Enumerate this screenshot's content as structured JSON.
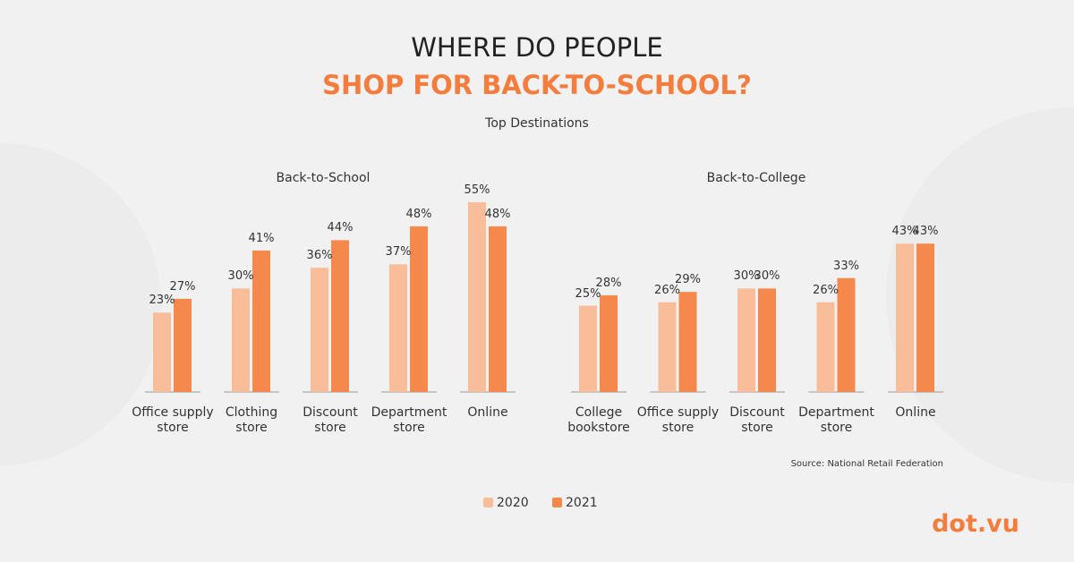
{
  "header": {
    "title_line1": "WHERE DO PEOPLE",
    "title_line2": "SHOP FOR BACK-TO-SCHOOL?",
    "subtitle": "Top Destinations"
  },
  "source": "Source: National Retail Federation",
  "logo": "dot.vu",
  "chart_data": [
    {
      "type": "bar",
      "title": "Back-to-School",
      "categories": [
        "Office supply\nstore",
        "Clothing\nstore",
        "Discount\nstore",
        "Department\nstore",
        "Online"
      ],
      "series": [
        {
          "name": "2020",
          "color": "#f9bd9a",
          "values": [
            23,
            30,
            36,
            37,
            55
          ],
          "value_labels": [
            "23%",
            "30%",
            "36%",
            "37%",
            "55%"
          ]
        },
        {
          "name": "2021",
          "color": "#f5894d",
          "values": [
            27,
            41,
            44,
            48,
            48
          ],
          "value_labels": [
            "27%",
            "41%",
            "44%",
            "48%",
            "48%"
          ]
        }
      ]
    },
    {
      "type": "bar",
      "title": "Back-to-College",
      "categories": [
        "College\nbookstore",
        "Office supply\nstore",
        "Discount\nstore",
        "Department\nstore",
        "Online"
      ],
      "series": [
        {
          "name": "2020",
          "color": "#f9bd9a",
          "values": [
            25,
            26,
            30,
            26,
            43
          ],
          "value_labels": [
            "25%",
            "26%",
            "30%",
            "26%",
            "43%"
          ]
        },
        {
          "name": "2021",
          "color": "#f5894d",
          "values": [
            28,
            29,
            30,
            33,
            43
          ],
          "value_labels": [
            "28%",
            "29%",
            "30%",
            "33%",
            "43%"
          ]
        }
      ]
    }
  ]
}
